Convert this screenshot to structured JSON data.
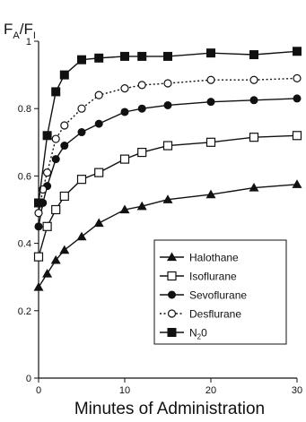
{
  "chart_data": {
    "type": "line",
    "xlabel": "Minutes of Administration",
    "ylabel": "FA/FI",
    "ylabel_parts": {
      "main1": "F",
      "sub1": "A",
      "slash": "/",
      "main2": "F",
      "sub2": "I"
    },
    "xlim": [
      0,
      30
    ],
    "ylim": [
      0,
      1
    ],
    "x_ticks": [
      0,
      10,
      20,
      30
    ],
    "y_ticks": [
      0,
      0.2,
      0.4,
      0.6,
      0.8,
      1
    ],
    "y_tick_labels": [
      "0",
      "0.2",
      "0.4",
      "0.6",
      "0.8",
      "1"
    ],
    "grid": false,
    "legend_position": "bottom-right",
    "series": [
      {
        "name": "Halothane",
        "marker": "filled-triangle",
        "line": "solid",
        "x": [
          0,
          1,
          2,
          3,
          5,
          7,
          10,
          12,
          15,
          20,
          25,
          30
        ],
        "y": [
          0.27,
          0.31,
          0.35,
          0.38,
          0.42,
          0.46,
          0.5,
          0.51,
          0.53,
          0.545,
          0.565,
          0.575
        ]
      },
      {
        "name": "Isoflurane",
        "marker": "open-square",
        "line": "solid",
        "x": [
          0,
          1,
          2,
          3,
          5,
          7,
          10,
          12,
          15,
          20,
          25,
          30
        ],
        "y": [
          0.36,
          0.45,
          0.5,
          0.54,
          0.59,
          0.61,
          0.65,
          0.67,
          0.69,
          0.7,
          0.715,
          0.72
        ]
      },
      {
        "name": "Sevoflurane",
        "marker": "filled-circle",
        "line": "solid",
        "x": [
          0,
          0.5,
          1,
          2,
          3,
          5,
          7,
          10,
          12,
          15,
          20,
          25,
          30
        ],
        "y": [
          0.45,
          0.52,
          0.57,
          0.65,
          0.69,
          0.73,
          0.755,
          0.79,
          0.8,
          0.81,
          0.82,
          0.825,
          0.83
        ]
      },
      {
        "name": "Desflurane",
        "marker": "open-circle",
        "line": "dotted",
        "x": [
          0,
          0.5,
          1,
          2,
          3,
          5,
          7,
          10,
          12,
          15,
          20,
          25,
          30
        ],
        "y": [
          0.49,
          0.56,
          0.61,
          0.71,
          0.75,
          0.8,
          0.84,
          0.86,
          0.87,
          0.875,
          0.885,
          0.885,
          0.89
        ]
      },
      {
        "name": "N2O",
        "name_parts": {
          "main": "N",
          "sub": "2",
          "end": "0"
        },
        "marker": "filled-square",
        "line": "solid",
        "x": [
          0,
          1,
          2,
          3,
          5,
          7,
          10,
          12,
          15,
          20,
          25,
          30
        ],
        "y": [
          0.52,
          0.72,
          0.85,
          0.9,
          0.945,
          0.95,
          0.955,
          0.955,
          0.955,
          0.965,
          0.96,
          0.97
        ]
      }
    ]
  }
}
